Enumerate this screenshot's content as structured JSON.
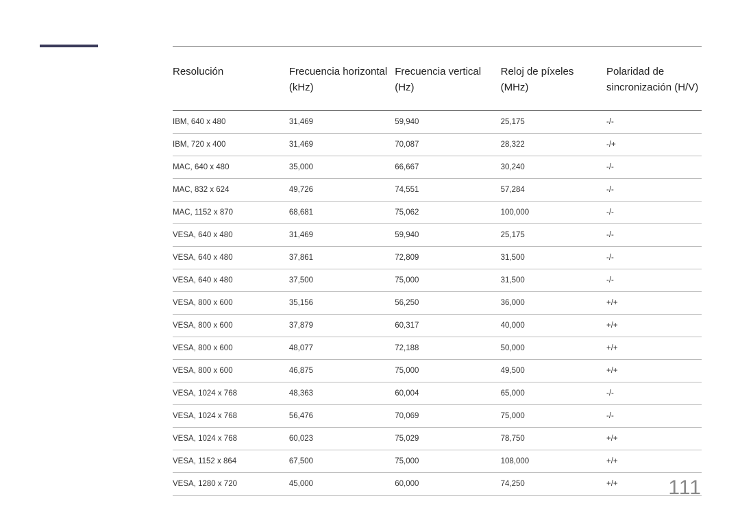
{
  "pageNumber": "111",
  "table": {
    "columns": [
      "Resolución",
      "Frecuencia horizontal (kHz)",
      "Frecuencia vertical (Hz)",
      "Reloj de píxeles (MHz)",
      "Polaridad de sincronización (H/V)"
    ],
    "rows": [
      [
        "IBM, 640 x 480",
        "31,469",
        "59,940",
        "25,175",
        "-/-"
      ],
      [
        "IBM, 720 x 400",
        "31,469",
        "70,087",
        "28,322",
        "-/+"
      ],
      [
        "MAC, 640 x 480",
        "35,000",
        "66,667",
        "30,240",
        "-/-"
      ],
      [
        "MAC, 832 x 624",
        "49,726",
        "74,551",
        "57,284",
        "-/-"
      ],
      [
        "MAC, 1152 x 870",
        "68,681",
        "75,062",
        "100,000",
        "-/-"
      ],
      [
        "VESA, 640 x 480",
        "31,469",
        "59,940",
        "25,175",
        "-/-"
      ],
      [
        "VESA, 640 x 480",
        "37,861",
        "72,809",
        "31,500",
        "-/-"
      ],
      [
        "VESA, 640 x 480",
        "37,500",
        "75,000",
        "31,500",
        "-/-"
      ],
      [
        "VESA, 800 x 600",
        "35,156",
        "56,250",
        "36,000",
        "+/+"
      ],
      [
        "VESA, 800 x 600",
        "37,879",
        "60,317",
        "40,000",
        "+/+"
      ],
      [
        "VESA, 800 x 600",
        "48,077",
        "72,188",
        "50,000",
        "+/+"
      ],
      [
        "VESA, 800 x 600",
        "46,875",
        "75,000",
        "49,500",
        "+/+"
      ],
      [
        "VESA, 1024 x 768",
        "48,363",
        "60,004",
        "65,000",
        "-/-"
      ],
      [
        "VESA, 1024 x 768",
        "56,476",
        "70,069",
        "75,000",
        "-/-"
      ],
      [
        "VESA, 1024 x 768",
        "60,023",
        "75,029",
        "78,750",
        "+/+"
      ],
      [
        "VESA, 1152 x 864",
        "67,500",
        "75,000",
        "108,000",
        "+/+"
      ],
      [
        "VESA, 1280 x 720",
        "45,000",
        "60,000",
        "74,250",
        "+/+"
      ]
    ]
  }
}
